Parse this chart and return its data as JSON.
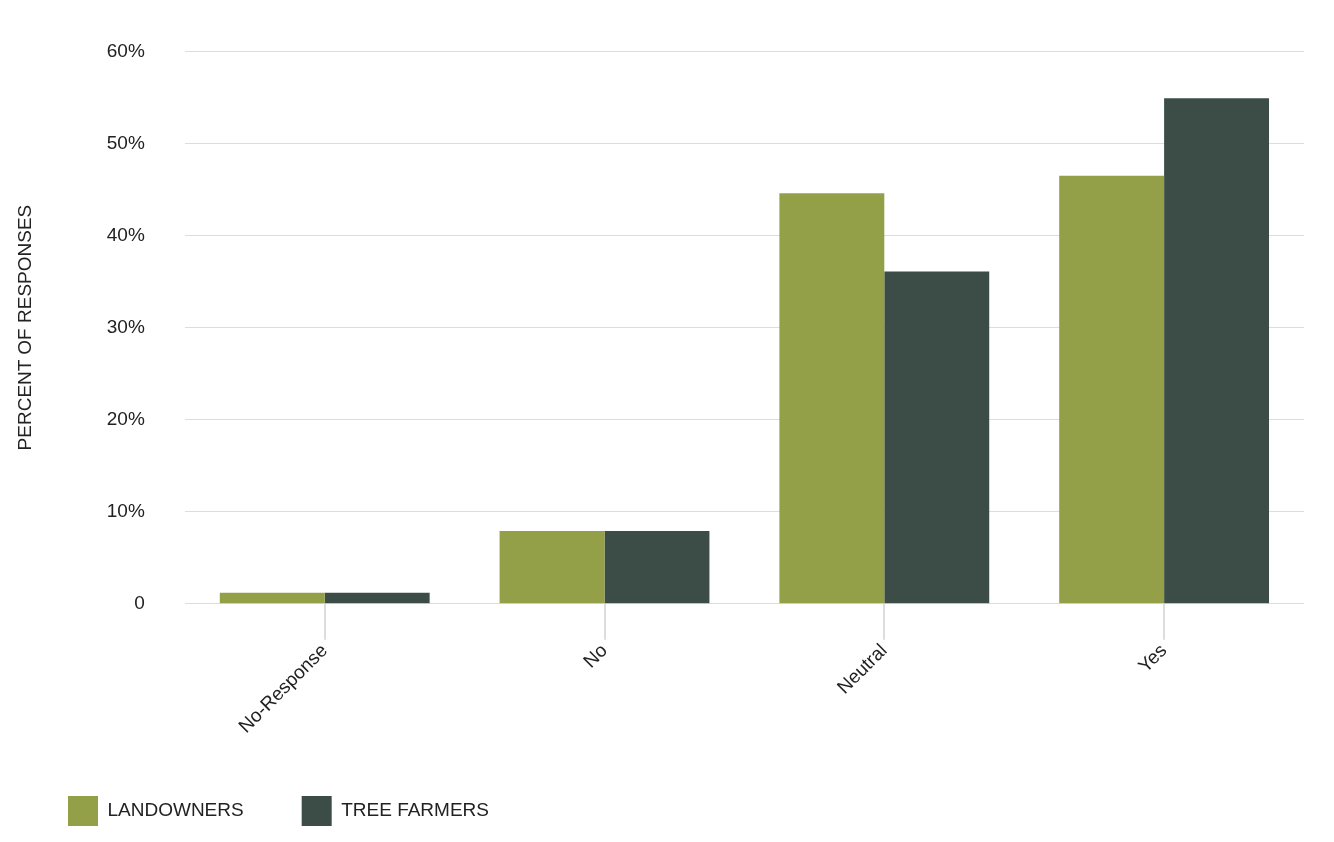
{
  "chart_data": {
    "type": "bar",
    "ylabel": "PERCENT OF RESPONSES",
    "categories": [
      "No-Response",
      "No",
      "Neutral",
      "Yes"
    ],
    "series": [
      {
        "name": "LANDOWNERS",
        "color": "#94a047",
        "values": [
          1.2,
          7.9,
          44.6,
          46.5
        ]
      },
      {
        "name": "TREE FARMERS",
        "color": "#3c4d47",
        "values": [
          1.2,
          7.9,
          36.1,
          54.9
        ]
      }
    ],
    "ylim": [
      0,
      60
    ],
    "yticks": [
      0,
      {
        "value": 10,
        "label": "10%"
      },
      {
        "value": 20,
        "label": "20%"
      },
      {
        "value": 30,
        "label": "30%"
      },
      {
        "value": 40,
        "label": "40%"
      },
      {
        "value": 50,
        "label": "50%"
      },
      {
        "value": 60,
        "label": "60%"
      }
    ],
    "grid": "y",
    "legend": "bottom left"
  }
}
